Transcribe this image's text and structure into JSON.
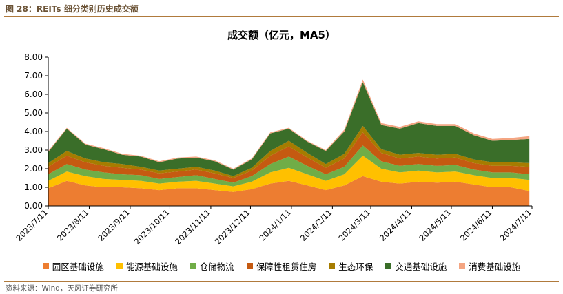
{
  "figure": {
    "title": "图 28：REITs 细分类别历史成交额",
    "source": "资料来源：Wind，天风证券研究所"
  },
  "chart_data": {
    "type": "area",
    "stacked": true,
    "title": "成交额（亿元，MA5）",
    "xlabel": "",
    "ylabel": "",
    "ylim": [
      0,
      8
    ],
    "yticks": [
      "0.00",
      "1.00",
      "2.00",
      "3.00",
      "4.00",
      "5.00",
      "6.00",
      "7.00",
      "8.00"
    ],
    "xticks": [
      "2023/7/11",
      "2023/8/11",
      "2023/9/11",
      "2023/10/11",
      "2023/11/11",
      "2023/12/11",
      "2024/1/11",
      "2024/2/11",
      "2024/3/11",
      "2024/4/11",
      "2024/5/11",
      "2024/6/11",
      "2024/7/11"
    ],
    "x": [
      "2023/7/11",
      "2023/7/25",
      "2023/8/8",
      "2023/8/22",
      "2023/9/5",
      "2023/9/19",
      "2023/10/3",
      "2023/10/17",
      "2023/10/31",
      "2023/11/14",
      "2023/11/28",
      "2023/12/12",
      "2023/12/26",
      "2024/1/9",
      "2024/1/23",
      "2024/2/6",
      "2024/2/20",
      "2024/3/5",
      "2024/3/19",
      "2024/4/2",
      "2024/4/16",
      "2024/4/30",
      "2024/5/14",
      "2024/5/28",
      "2024/6/11",
      "2024/6/25",
      "2024/7/9"
    ],
    "grid": false,
    "legend_position": "bottom",
    "series": [
      {
        "name": "园区基础设施",
        "color": "#ed7d31",
        "values": [
          0.95,
          1.35,
          1.1,
          1.0,
          1.0,
          0.95,
          0.85,
          0.95,
          0.95,
          0.85,
          0.75,
          0.9,
          1.2,
          1.35,
          1.1,
          0.85,
          1.1,
          1.6,
          1.3,
          1.2,
          1.3,
          1.25,
          1.3,
          1.15,
          1.0,
          1.0,
          0.8
        ]
      },
      {
        "name": "能源基础设施",
        "color": "#ffc000",
        "values": [
          0.4,
          0.5,
          0.5,
          0.45,
          0.4,
          0.4,
          0.35,
          0.35,
          0.4,
          0.35,
          0.3,
          0.4,
          0.6,
          0.7,
          0.6,
          0.5,
          0.6,
          1.1,
          0.7,
          0.6,
          0.6,
          0.55,
          0.55,
          0.5,
          0.5,
          0.5,
          0.6
        ]
      },
      {
        "name": "仓储物流",
        "color": "#70ad47",
        "values": [
          0.35,
          0.4,
          0.35,
          0.35,
          0.3,
          0.3,
          0.25,
          0.25,
          0.3,
          0.25,
          0.2,
          0.3,
          0.45,
          0.6,
          0.45,
          0.35,
          0.4,
          0.55,
          0.4,
          0.35,
          0.35,
          0.35,
          0.35,
          0.3,
          0.3,
          0.3,
          0.3
        ]
      },
      {
        "name": "保障性租赁住房",
        "color": "#c55a11",
        "values": [
          0.4,
          0.45,
          0.4,
          0.35,
          0.35,
          0.3,
          0.3,
          0.3,
          0.3,
          0.3,
          0.25,
          0.3,
          0.45,
          0.55,
          0.45,
          0.35,
          0.45,
          0.7,
          0.45,
          0.4,
          0.4,
          0.4,
          0.4,
          0.35,
          0.35,
          0.35,
          0.4
        ]
      },
      {
        "name": "生态环保",
        "color": "#a67c00",
        "values": [
          0.2,
          0.25,
          0.2,
          0.2,
          0.2,
          0.15,
          0.15,
          0.15,
          0.15,
          0.15,
          0.1,
          0.15,
          0.25,
          0.3,
          0.25,
          0.2,
          0.25,
          0.35,
          0.2,
          0.2,
          0.2,
          0.2,
          0.2,
          0.2,
          0.2,
          0.2,
          0.2
        ]
      },
      {
        "name": "交通基础设施",
        "color": "#3a6e29",
        "values": [
          0.6,
          1.2,
          0.75,
          0.7,
          0.5,
          0.55,
          0.45,
          0.55,
          0.5,
          0.5,
          0.35,
          0.45,
          0.95,
          0.65,
          0.6,
          0.7,
          1.2,
          2.35,
          1.3,
          1.4,
          1.6,
          1.55,
          1.5,
          1.3,
          1.15,
          1.2,
          1.3
        ]
      },
      {
        "name": "消费基础设施",
        "color": "#f4a582",
        "values": [
          0.05,
          0.05,
          0.05,
          0.05,
          0.05,
          0.05,
          0.05,
          0.05,
          0.05,
          0.05,
          0.05,
          0.05,
          0.05,
          0.05,
          0.05,
          0.05,
          0.1,
          0.15,
          0.1,
          0.1,
          0.1,
          0.1,
          0.1,
          0.1,
          0.1,
          0.1,
          0.15
        ]
      }
    ]
  }
}
